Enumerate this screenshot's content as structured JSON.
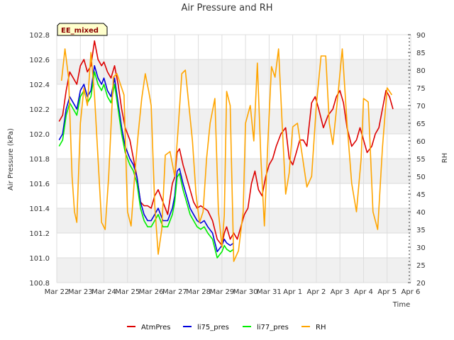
{
  "chart_data": {
    "type": "line",
    "title": "Air Pressure and RH",
    "badge": "EE_mixed",
    "xlabel": "Time",
    "ylabel": "Air Pressure (kPa)",
    "y2label": "RH",
    "x_ticks": [
      "Mar 22",
      "Mar 23",
      "Mar 24",
      "Mar 25",
      "Mar 26",
      "Mar 27",
      "Mar 28",
      "Mar 29",
      "Mar 30",
      "Mar 31",
      "Apr 1",
      "Apr 2",
      "Apr 3",
      "Apr 4",
      "Apr 5",
      "Apr 6"
    ],
    "xlim": [
      0,
      15
    ],
    "ylim": [
      100.8,
      102.8
    ],
    "y_ticks": [
      "100.8",
      "101.0",
      "101.2",
      "101.4",
      "101.6",
      "101.8",
      "102.0",
      "102.2",
      "102.4",
      "102.6",
      "102.8"
    ],
    "y2lim": [
      20,
      90
    ],
    "y2_ticks": [
      "20",
      "25",
      "30",
      "35",
      "40",
      "45",
      "50",
      "55",
      "60",
      "65",
      "70",
      "75",
      "80",
      "85",
      "90"
    ],
    "grid": true,
    "legend_position": "bottom",
    "colors": {
      "AtmPres": "#dd0000",
      "li75_pres": "#0000dd",
      "li77_pres": "#00ee00",
      "RH": "#ffa500",
      "band": "#f0f0f0",
      "badge_bg": "#ffffcc"
    },
    "series": [
      {
        "name": "AtmPres",
        "axis": "left",
        "x": [
          0.1,
          0.25,
          0.4,
          0.55,
          0.7,
          0.85,
          1.0,
          1.15,
          1.3,
          1.45,
          1.6,
          1.75,
          1.9,
          2.0,
          2.15,
          2.3,
          2.45,
          2.6,
          2.75,
          2.9,
          3.0,
          3.1,
          3.25,
          3.4,
          3.55,
          3.7,
          3.85,
          4.0,
          4.15,
          4.3,
          4.5,
          4.7,
          4.9,
          5.0,
          5.1,
          5.2,
          5.35,
          5.5,
          5.65,
          5.8,
          5.95,
          6.1,
          6.25,
          6.4,
          6.6,
          6.8,
          7.0,
          7.1,
          7.2,
          7.35,
          7.5,
          7.65,
          7.8,
          7.95,
          8.1,
          8.25,
          8.4,
          8.55,
          8.7,
          8.85,
          9.0,
          9.15,
          9.3,
          9.5,
          9.7,
          9.85,
          10.0,
          10.15,
          10.3,
          10.45,
          10.6,
          10.8,
          10.95,
          11.1,
          11.3,
          11.5,
          11.7,
          11.85,
          12.0,
          12.15,
          12.3,
          12.5,
          12.7,
          12.85,
          13.0,
          13.15,
          13.35,
          13.5,
          13.65,
          13.8,
          13.95,
          14.1,
          14.25
        ],
        "values": [
          102.1,
          102.15,
          102.35,
          102.5,
          102.45,
          102.4,
          102.55,
          102.6,
          102.5,
          102.55,
          102.75,
          102.6,
          102.55,
          102.58,
          102.5,
          102.45,
          102.55,
          102.4,
          102.2,
          102.05,
          102.0,
          101.95,
          101.8,
          101.65,
          101.45,
          101.42,
          101.42,
          101.4,
          101.5,
          101.55,
          101.45,
          101.35,
          101.6,
          101.65,
          101.85,
          101.88,
          101.75,
          101.65,
          101.55,
          101.45,
          101.4,
          101.42,
          101.4,
          101.38,
          101.3,
          101.15,
          101.1,
          101.2,
          101.25,
          101.15,
          101.2,
          101.15,
          101.25,
          101.35,
          101.4,
          101.6,
          101.7,
          101.55,
          101.5,
          101.65,
          101.75,
          101.8,
          101.9,
          102.0,
          102.05,
          101.8,
          101.75,
          101.85,
          101.95,
          101.95,
          101.9,
          102.25,
          102.3,
          102.2,
          102.05,
          102.15,
          102.2,
          102.3,
          102.35,
          102.25,
          102.05,
          101.9,
          101.95,
          102.05,
          101.95,
          101.85,
          101.9,
          102.0,
          102.05,
          102.2,
          102.35,
          102.3,
          102.2
        ]
      },
      {
        "name": "li75_pres",
        "axis": "left",
        "x": [
          0.1,
          0.25,
          0.4,
          0.55,
          0.7,
          0.85,
          1.0,
          1.15,
          1.3,
          1.45,
          1.6,
          1.75,
          1.9,
          2.0,
          2.15,
          2.3,
          2.45,
          2.6,
          2.75,
          2.9,
          3.0,
          3.1,
          3.25,
          3.4,
          3.55,
          3.7,
          3.85,
          4.0,
          4.15,
          4.3,
          4.5,
          4.7,
          4.9,
          5.0,
          5.1,
          5.2,
          5.35,
          5.5,
          5.65,
          5.8,
          5.95,
          6.1,
          6.25,
          6.4,
          6.6,
          6.8,
          7.0,
          7.1,
          7.2,
          7.35,
          7.5
        ],
        "values": [
          101.95,
          102.0,
          102.2,
          102.3,
          102.25,
          102.2,
          102.35,
          102.4,
          102.3,
          102.35,
          102.55,
          102.45,
          102.4,
          102.45,
          102.35,
          102.3,
          102.45,
          102.25,
          102.05,
          101.9,
          101.85,
          101.8,
          101.75,
          101.65,
          101.45,
          101.35,
          101.3,
          101.3,
          101.35,
          101.4,
          101.3,
          101.3,
          101.4,
          101.5,
          101.7,
          101.72,
          101.6,
          101.5,
          101.4,
          101.35,
          101.3,
          101.28,
          101.3,
          101.25,
          101.2,
          101.05,
          101.1,
          101.15,
          101.12,
          101.1,
          101.12
        ]
      },
      {
        "name": "li77_pres",
        "axis": "left",
        "x": [
          0.1,
          0.25,
          0.4,
          0.55,
          0.7,
          0.85,
          1.0,
          1.15,
          1.3,
          1.45,
          1.6,
          1.75,
          1.9,
          2.0,
          2.15,
          2.3,
          2.45,
          2.6,
          2.75,
          2.9,
          3.0,
          3.1,
          3.25,
          3.4,
          3.55,
          3.7,
          3.85,
          4.0,
          4.15,
          4.3,
          4.5,
          4.7,
          4.9,
          5.0,
          5.1,
          5.2,
          5.35,
          5.5,
          5.65,
          5.8,
          5.95,
          6.1,
          6.25,
          6.4,
          6.6,
          6.8,
          7.0,
          7.1,
          7.2,
          7.35,
          7.5
        ],
        "values": [
          101.9,
          101.95,
          102.15,
          102.25,
          102.2,
          102.15,
          102.3,
          102.35,
          102.25,
          102.3,
          102.5,
          102.4,
          102.35,
          102.4,
          102.3,
          102.25,
          102.4,
          102.2,
          102.0,
          101.85,
          101.8,
          101.75,
          101.7,
          101.6,
          101.4,
          101.3,
          101.25,
          101.25,
          101.3,
          101.35,
          101.25,
          101.25,
          101.35,
          101.45,
          101.65,
          101.68,
          101.55,
          101.45,
          101.35,
          101.3,
          101.25,
          101.23,
          101.25,
          101.2,
          101.15,
          101.0,
          101.05,
          101.1,
          101.07,
          101.05,
          101.07
        ]
      },
      {
        "name": "RH",
        "axis": "right",
        "x": [
          0.2,
          0.35,
          0.5,
          0.65,
          0.75,
          0.85,
          1.0,
          1.15,
          1.3,
          1.45,
          1.6,
          1.75,
          1.9,
          2.05,
          2.2,
          2.4,
          2.55,
          2.7,
          2.85,
          3.0,
          3.15,
          3.3,
          3.45,
          3.6,
          3.75,
          3.9,
          4.0,
          4.15,
          4.3,
          4.45,
          4.6,
          4.8,
          5.0,
          5.15,
          5.3,
          5.45,
          5.6,
          5.75,
          5.9,
          6.05,
          6.2,
          6.35,
          6.5,
          6.7,
          6.85,
          7.0,
          7.1,
          7.2,
          7.35,
          7.5,
          7.7,
          7.9,
          8.0,
          8.2,
          8.35,
          8.5,
          8.65,
          8.8,
          8.95,
          9.1,
          9.25,
          9.4,
          9.55,
          9.7,
          9.85,
          10.0,
          10.2,
          10.4,
          10.6,
          10.8,
          11.0,
          11.2,
          11.4,
          11.55,
          11.7,
          11.9,
          12.1,
          12.3,
          12.5,
          12.7,
          12.9,
          13.0,
          13.2,
          13.4,
          13.6,
          13.8,
          14.0,
          14.2
        ],
        "values": [
          77,
          86,
          78,
          50,
          40,
          37,
          65,
          75,
          70,
          85,
          73,
          55,
          37,
          35,
          50,
          78,
          79,
          76,
          73,
          40,
          36,
          50,
          62,
          72,
          79,
          74,
          70,
          42,
          28,
          35,
          56,
          57,
          50,
          64,
          79,
          80,
          70,
          60,
          45,
          37,
          40,
          55,
          65,
          72,
          40,
          30,
          39,
          74,
          70,
          26,
          29,
          40,
          65,
          70,
          60,
          82,
          55,
          36,
          60,
          81,
          78,
          86,
          65,
          45,
          51,
          64,
          65,
          56,
          47,
          50,
          70,
          84,
          84,
          65,
          59,
          72,
          86,
          65,
          48,
          40,
          55,
          72,
          71,
          40,
          35,
          58,
          75,
          73
        ]
      }
    ]
  }
}
